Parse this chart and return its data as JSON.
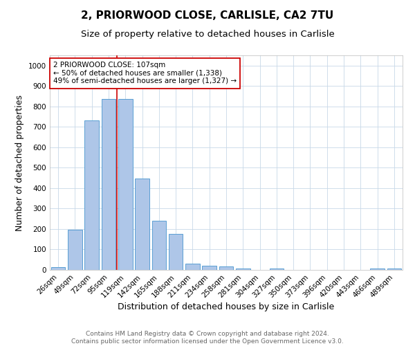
{
  "title1": "2, PRIORWOOD CLOSE, CARLISLE, CA2 7TU",
  "title2": "Size of property relative to detached houses in Carlisle",
  "xlabel": "Distribution of detached houses by size in Carlisle",
  "ylabel": "Number of detached properties",
  "categories": [
    "26sqm",
    "49sqm",
    "72sqm",
    "95sqm",
    "119sqm",
    "142sqm",
    "165sqm",
    "188sqm",
    "211sqm",
    "234sqm",
    "258sqm",
    "281sqm",
    "304sqm",
    "327sqm",
    "350sqm",
    "373sqm",
    "396sqm",
    "420sqm",
    "443sqm",
    "466sqm",
    "489sqm"
  ],
  "values": [
    15,
    195,
    730,
    835,
    835,
    447,
    240,
    175,
    30,
    22,
    17,
    8,
    0,
    8,
    0,
    0,
    0,
    0,
    0,
    8,
    8
  ],
  "bar_color": "#aec6e8",
  "bar_edge_color": "#5a9fd4",
  "vline_x": 3.5,
  "vline_color": "#cc0000",
  "annotation_text": "2 PRIORWOOD CLOSE: 107sqm\n← 50% of detached houses are smaller (1,338)\n49% of semi-detached houses are larger (1,327) →",
  "annotation_box_color": "#ffffff",
  "annotation_box_edge": "#cc0000",
  "ylim": [
    0,
    1050
  ],
  "yticks": [
    0,
    100,
    200,
    300,
    400,
    500,
    600,
    700,
    800,
    900,
    1000
  ],
  "grid_color": "#c8d8e8",
  "background_color": "#ffffff",
  "footer_text": "Contains HM Land Registry data © Crown copyright and database right 2024.\nContains public sector information licensed under the Open Government Licence v3.0.",
  "title1_fontsize": 11,
  "title2_fontsize": 9.5,
  "xlabel_fontsize": 9,
  "ylabel_fontsize": 9,
  "tick_fontsize": 7.5,
  "footer_fontsize": 6.5,
  "annotation_fontsize": 7.5
}
